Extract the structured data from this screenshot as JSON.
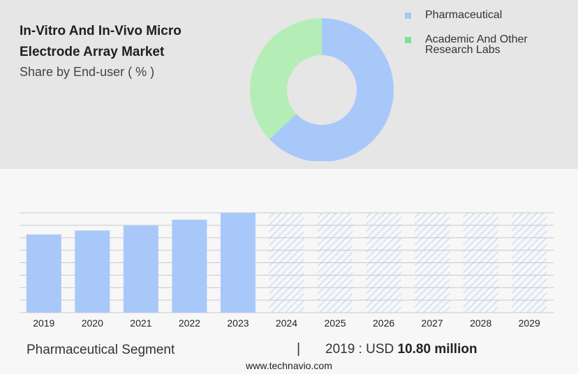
{
  "title": "In-Vitro And In-Vivo Micro Electrode Array Market",
  "subtitle": "Share by End-user ( % )",
  "colors": {
    "pharmaceutical": "#a9c8fa",
    "academic": "#b4eeb6",
    "academic_swatch": "#7fe094",
    "hatch": "#a9c8fa",
    "grid": "#c8c8c8"
  },
  "chart_data": [
    {
      "type": "pie",
      "title": "Share by End-user ( % )",
      "categories": [
        "Pharmaceutical",
        "Academic And Other Research Labs"
      ],
      "values": [
        63,
        37
      ]
    },
    {
      "type": "bar",
      "categories": [
        "2019",
        "2020",
        "2021",
        "2022",
        "2023",
        "2024",
        "2025",
        "2026",
        "2027",
        "2028",
        "2029"
      ],
      "values": [
        10.8,
        11.35,
        12.05,
        12.85,
        13.8,
        null,
        null,
        null,
        null,
        null,
        null
      ],
      "forecast_from": "2024",
      "grid": true,
      "ylim": [
        0,
        16
      ]
    }
  ],
  "legend": [
    {
      "label": "Pharmaceutical",
      "lines": [
        "Pharmaceutical"
      ],
      "color": "#a9c8fa"
    },
    {
      "label": "Academic And Other Research Labs",
      "lines": [
        "Academic And Other",
        "Research Labs"
      ],
      "color": "#7fe094"
    }
  ],
  "footer": {
    "segment": "Pharmaceutical Segment",
    "separator": "|",
    "year_label": "2019 : USD",
    "value": "10.80 million"
  },
  "source": "www.technavio.com"
}
